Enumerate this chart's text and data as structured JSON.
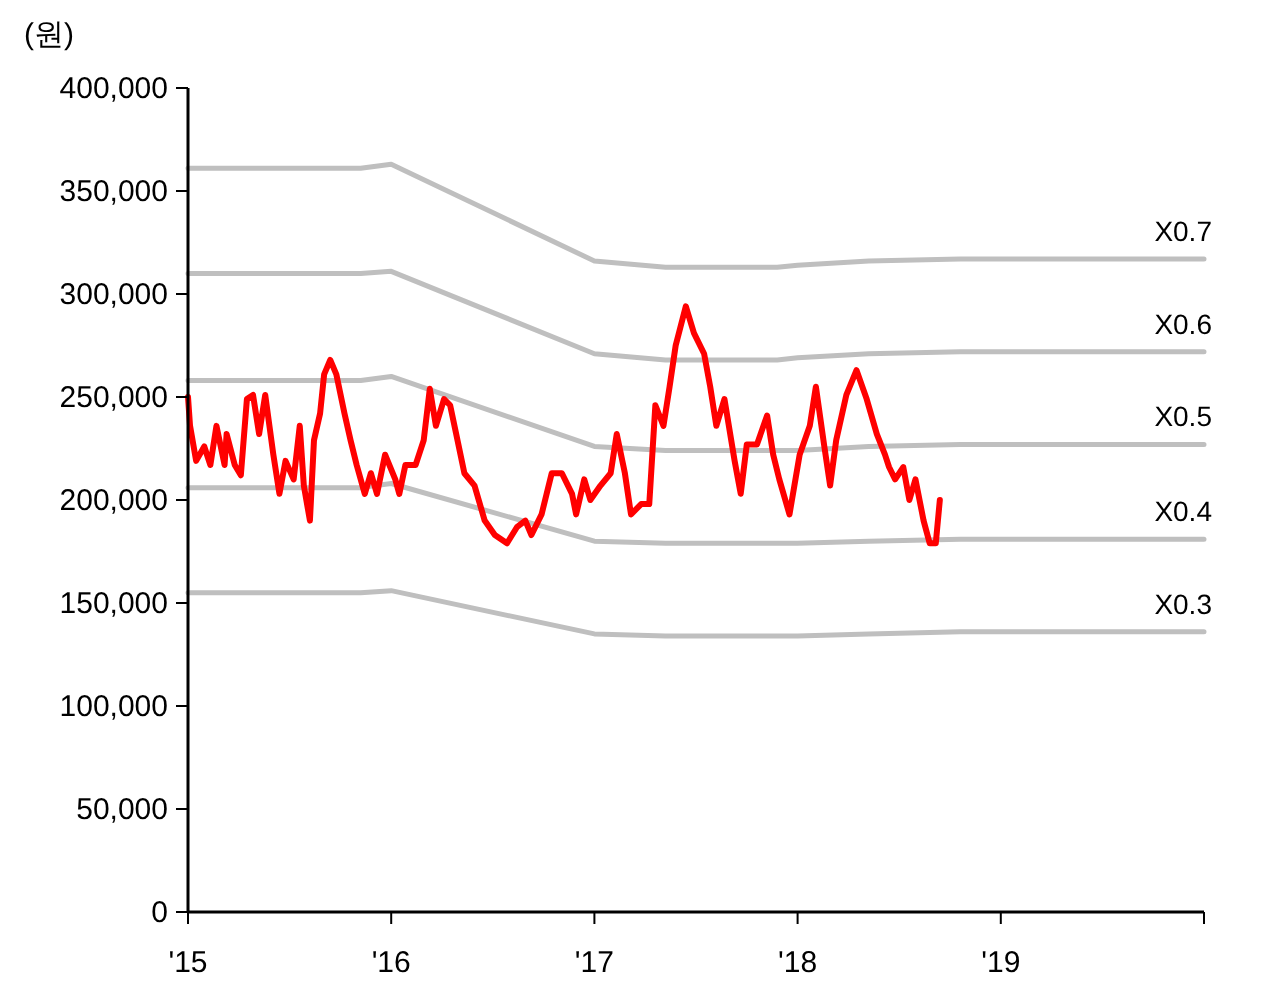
{
  "chart_data": {
    "type": "line",
    "ylabel": "(원)",
    "xlim": [
      2015,
      2020
    ],
    "ylim": [
      0,
      400000
    ],
    "xticks": [
      {
        "value": 2015,
        "label": "'15"
      },
      {
        "value": 2016,
        "label": "'16"
      },
      {
        "value": 2017,
        "label": "'17"
      },
      {
        "value": 2018,
        "label": "'18"
      },
      {
        "value": 2019,
        "label": "'19"
      },
      {
        "value": 2020,
        "label": null
      }
    ],
    "yticks": [
      {
        "value": 0,
        "label": "0"
      },
      {
        "value": 50000,
        "label": "50,000"
      },
      {
        "value": 100000,
        "label": "100,000"
      },
      {
        "value": 150000,
        "label": "150,000"
      },
      {
        "value": 200000,
        "label": "200,000"
      },
      {
        "value": 250000,
        "label": "250,000"
      },
      {
        "value": 300000,
        "label": "300,000"
      },
      {
        "value": 350000,
        "label": "350,000"
      },
      {
        "value": 400000,
        "label": "400,000"
      }
    ],
    "series": [
      {
        "name": "X0.7",
        "color": "#bfbfbf",
        "x": [
          2015.0,
          2015.85,
          2016.0,
          2017.0,
          2017.35,
          2017.9,
          2018.0,
          2018.35,
          2018.8,
          2020.0
        ],
        "values": [
          361000,
          361000,
          363000,
          316000,
          313000,
          313000,
          314000,
          316000,
          317000,
          317000
        ]
      },
      {
        "name": "X0.6",
        "color": "#bfbfbf",
        "x": [
          2015.0,
          2015.85,
          2016.0,
          2017.0,
          2017.35,
          2017.9,
          2018.0,
          2018.35,
          2018.8,
          2020.0
        ],
        "values": [
          310000,
          310000,
          311000,
          271000,
          268000,
          268000,
          269000,
          271000,
          272000,
          272000
        ]
      },
      {
        "name": "X0.5",
        "color": "#bfbfbf",
        "x": [
          2015.0,
          2015.85,
          2016.0,
          2017.0,
          2017.35,
          2017.9,
          2018.0,
          2018.35,
          2018.8,
          2020.0
        ],
        "values": [
          258000,
          258000,
          260000,
          226000,
          224000,
          224000,
          224000,
          226000,
          227000,
          227000
        ]
      },
      {
        "name": "X0.4",
        "color": "#bfbfbf",
        "x": [
          2015.0,
          2015.85,
          2016.0,
          2017.0,
          2017.35,
          2017.9,
          2018.0,
          2018.35,
          2018.8,
          2020.0
        ],
        "values": [
          206000,
          206000,
          208000,
          180000,
          179000,
          179000,
          179000,
          180000,
          181000,
          181000
        ]
      },
      {
        "name": "X0.3",
        "color": "#bfbfbf",
        "x": [
          2015.0,
          2015.85,
          2016.0,
          2017.0,
          2017.35,
          2017.9,
          2018.0,
          2018.35,
          2018.8,
          2020.0
        ],
        "values": [
          155000,
          155000,
          156000,
          135000,
          134000,
          134000,
          134000,
          135000,
          136000,
          136000
        ]
      },
      {
        "color": "#ff0000",
        "x": [
          2015.0,
          2015.01,
          2015.04,
          2015.08,
          2015.11,
          2015.14,
          2015.18,
          2015.19,
          2015.23,
          2015.26,
          2015.29,
          2015.32,
          2015.35,
          2015.38,
          2015.42,
          2015.45,
          2015.48,
          2015.52,
          2015.55,
          2015.57,
          2015.6,
          2015.62,
          2015.65,
          2015.67,
          2015.7,
          2015.73,
          2015.77,
          2015.8,
          2015.83,
          2015.87,
          2015.9,
          2015.93,
          2015.97,
          2016.02,
          2016.04,
          2016.07,
          2016.12,
          2016.16,
          2016.19,
          2016.22,
          2016.26,
          2016.29,
          2016.32,
          2016.36,
          2016.41,
          2016.46,
          2016.51,
          2016.57,
          2016.62,
          2016.66,
          2016.69,
          2016.74,
          2016.79,
          2016.84,
          2016.89,
          2016.91,
          2016.95,
          2016.98,
          2017.03,
          2017.08,
          2017.11,
          2017.15,
          2017.18,
          2017.23,
          2017.27,
          2017.3,
          2017.34,
          2017.37,
          2017.4,
          2017.45,
          2017.49,
          2017.54,
          2017.57,
          2017.6,
          2017.64,
          2017.69,
          2017.72,
          2017.75,
          2017.8,
          2017.85,
          2017.88,
          2017.91,
          2017.96,
          2018.01,
          2018.06,
          2018.09,
          2018.13,
          2018.16,
          2018.19,
          2018.24,
          2018.29,
          2018.34,
          2018.39,
          2018.43,
          2018.45,
          2018.48,
          2018.52,
          2018.55,
          2018.58,
          2018.62,
          2018.65,
          2018.68,
          2018.7
        ],
        "values": [
          250000,
          236000,
          219000,
          226000,
          217000,
          236000,
          217000,
          232000,
          217000,
          212000,
          249000,
          251000,
          232000,
          251000,
          222000,
          203000,
          219000,
          210000,
          236000,
          207000,
          190000,
          229000,
          242000,
          261000,
          268000,
          261000,
          242000,
          229000,
          217000,
          203000,
          213000,
          203000,
          222000,
          210000,
          203000,
          217000,
          217000,
          229000,
          254000,
          236000,
          249000,
          246000,
          232000,
          213000,
          207000,
          190000,
          183000,
          179000,
          187000,
          190000,
          183000,
          193000,
          213000,
          213000,
          203000,
          193000,
          210000,
          200000,
          207000,
          213000,
          232000,
          213000,
          193000,
          198000,
          198000,
          246000,
          236000,
          255000,
          275000,
          294000,
          281000,
          271000,
          255000,
          236000,
          249000,
          219000,
          203000,
          227000,
          227000,
          241000,
          222000,
          210000,
          193000,
          222000,
          236000,
          255000,
          227000,
          207000,
          229000,
          251000,
          263000,
          249000,
          232000,
          222000,
          216000,
          210000,
          216000,
          200000,
          210000,
          190000,
          179000,
          179000,
          200000
        ]
      }
    ]
  }
}
